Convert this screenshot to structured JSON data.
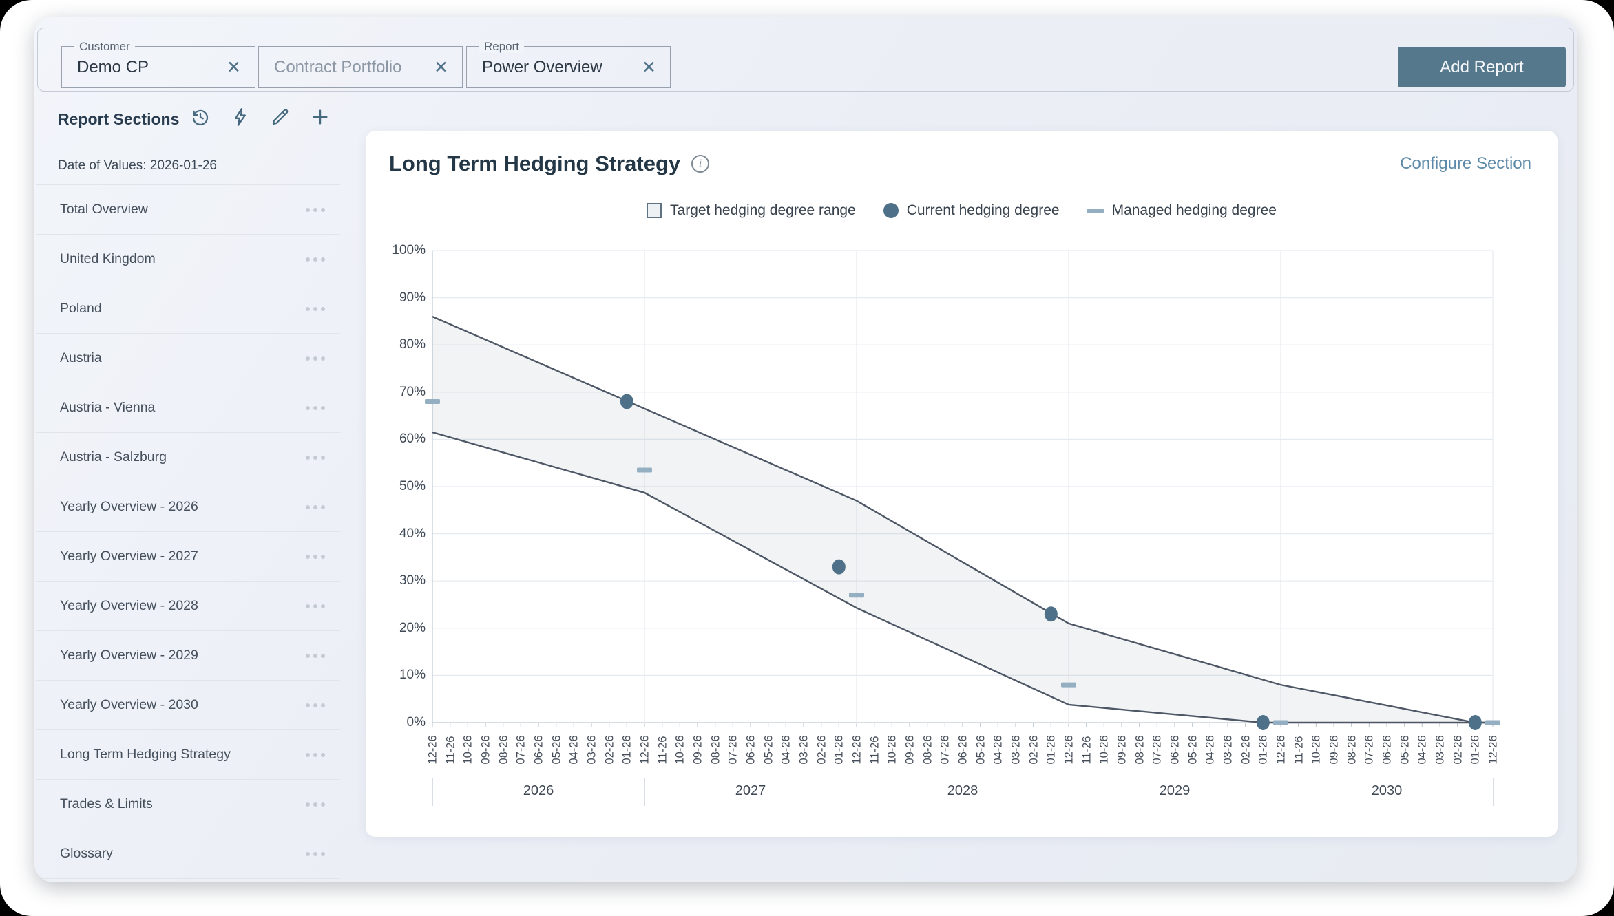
{
  "topbar": {
    "fields": [
      {
        "label": "Customer",
        "value": "Demo CP",
        "clear_icon": "✕"
      },
      {
        "label": "",
        "value": "",
        "placeholder": "Contract Portfolio",
        "clear_icon": "✕"
      },
      {
        "label": "Report",
        "value": "Power Overview",
        "clear_icon": "✕"
      }
    ],
    "add_report_label": "Add Report"
  },
  "sidebar": {
    "title": "Report Sections",
    "date_of_values": "Date of Values: 2026-01-26",
    "icons": [
      "history-icon",
      "lightning-icon",
      "edit-icon",
      "add-icon"
    ],
    "items": [
      "Total Overview",
      "United Kingdom",
      "Poland",
      "Austria",
      "Austria - Vienna",
      "Austria - Salzburg",
      "Yearly Overview - 2026",
      "Yearly Overview - 2027",
      "Yearly Overview - 2028",
      "Yearly Overview - 2029",
      "Yearly Overview - 2030",
      "Long Term Hedging Strategy",
      "Trades & Limits",
      "Glossary"
    ]
  },
  "section": {
    "title": "Long Term Hedging Strategy",
    "info_icon": "i",
    "configure_label": "Configure Section"
  },
  "chart_data": {
    "type": "line",
    "title": "Long Term Hedging Strategy",
    "legend": [
      {
        "label": "Target hedging degree range",
        "marker": "square-outline"
      },
      {
        "label": "Current hedging degree",
        "marker": "circle"
      },
      {
        "label": "Managed hedging degree",
        "marker": "dash"
      }
    ],
    "y_axis": {
      "min": 0,
      "max": 100,
      "ticks": [
        "100%",
        "90%",
        "80%",
        "70%",
        "60%",
        "50%",
        "40%",
        "30%",
        "20%",
        "10%",
        "0%"
      ]
    },
    "x_axis": {
      "month_labels": [
        "12-26",
        "11-26",
        "10-26",
        "09-26",
        "08-26",
        "07-26",
        "06-26",
        "05-26",
        "04-26",
        "03-26",
        "02-26",
        "01-26",
        "12-26",
        "11-26",
        "10-26",
        "09-26",
        "08-26",
        "07-26",
        "06-26",
        "05-26",
        "04-26",
        "03-26",
        "02-26",
        "01-26",
        "12-26",
        "11-26",
        "10-26",
        "09-26",
        "08-26",
        "07-26",
        "06-26",
        "05-26",
        "04-26",
        "03-26",
        "02-26",
        "01-26",
        "12-26",
        "11-26",
        "10-26",
        "09-26",
        "08-26",
        "07-26",
        "06-26",
        "05-26",
        "04-26",
        "03-26",
        "02-26",
        "01-26",
        "12-26",
        "11-26",
        "10-26",
        "09-26",
        "08-26",
        "07-26",
        "06-26",
        "05-26",
        "04-26",
        "03-26",
        "02-26",
        "01-26",
        "12-26"
      ],
      "year_groups": [
        "2026",
        "2027",
        "2028",
        "2029",
        "2030"
      ],
      "ticks_per_group": 12
    },
    "series": {
      "target_range_upper": [
        {
          "x": 0,
          "y": 86
        },
        {
          "x": 12,
          "y": 66.5
        },
        {
          "x": 24,
          "y": 47
        },
        {
          "x": 36,
          "y": 21
        },
        {
          "x": 48,
          "y": 8
        },
        {
          "x": 59,
          "y": 0
        },
        {
          "x": 60,
          "y": 0
        }
      ],
      "target_range_lower": [
        {
          "x": 0,
          "y": 61.5
        },
        {
          "x": 12,
          "y": 48.7
        },
        {
          "x": 24,
          "y": 24.3
        },
        {
          "x": 36,
          "y": 3.8
        },
        {
          "x": 47,
          "y": 0
        },
        {
          "x": 60,
          "y": 0
        }
      ],
      "current_hedging_degree": [
        {
          "x": 11,
          "y": 68
        },
        {
          "x": 23,
          "y": 33
        },
        {
          "x": 35,
          "y": 23
        },
        {
          "x": 47,
          "y": 0
        },
        {
          "x": 59,
          "y": 0
        }
      ],
      "managed_hedging_degree": [
        {
          "x": 0,
          "y": 68
        },
        {
          "x": 12,
          "y": 53.5
        },
        {
          "x": 24,
          "y": 27
        },
        {
          "x": 36,
          "y": 8
        },
        {
          "x": 48,
          "y": 0
        },
        {
          "x": 60,
          "y": 0
        }
      ]
    },
    "colors": {
      "band_fill": "rgba(120,135,158,0.10)",
      "band_stroke": "#4e5765",
      "current_point": "#4e7189",
      "managed_dash": "#95afc2",
      "grid": "#e5eaf0",
      "axis": "#c9d2da",
      "tick": "#c2cbd3"
    },
    "layout": {
      "grid_on": true,
      "legend_position": "top-center"
    }
  }
}
